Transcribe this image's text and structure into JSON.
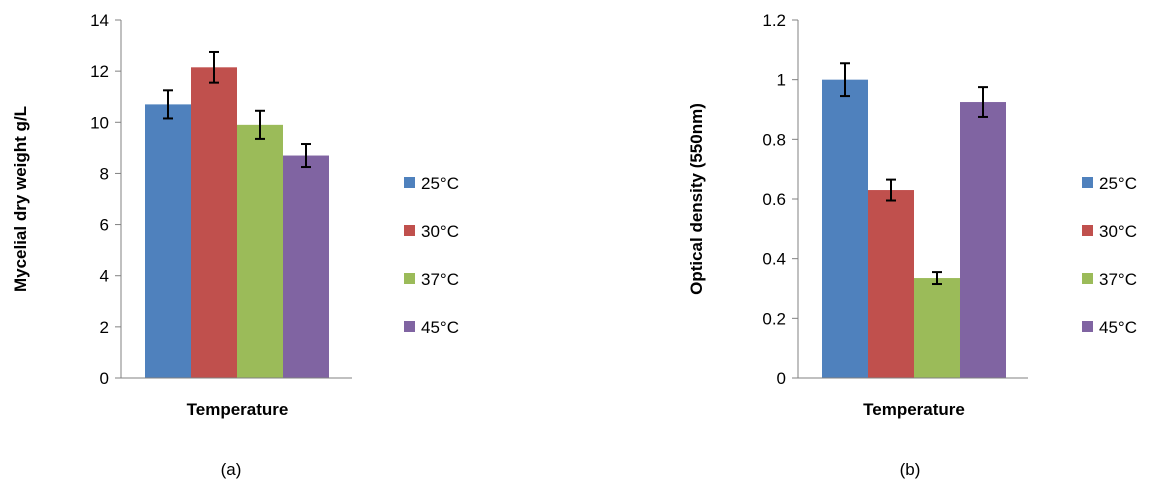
{
  "chart_data": [
    {
      "type": "bar",
      "caption": "(a)",
      "xlabel": "Temperature",
      "ylabel": "Mycelial dry weight g/L",
      "ylim": [
        0,
        14
      ],
      "yticks": [
        0,
        2,
        4,
        6,
        8,
        10,
        12,
        14
      ],
      "categories": [
        ""
      ],
      "series": [
        {
          "name": "25°C",
          "values": [
            10.7
          ],
          "error": [
            0.55
          ],
          "color": "#4f81bd"
        },
        {
          "name": "30°C",
          "values": [
            12.15
          ],
          "error": [
            0.6
          ],
          "color": "#c0504d"
        },
        {
          "name": "37°C",
          "values": [
            9.9
          ],
          "error": [
            0.55
          ],
          "color": "#9bbb59"
        },
        {
          "name": "45°C",
          "values": [
            8.7
          ],
          "error": [
            0.45
          ],
          "color": "#8064a2"
        }
      ],
      "grid": false,
      "legend_position": "right"
    },
    {
      "type": "bar",
      "caption": "(b)",
      "xlabel": "Temperature",
      "ylabel": "Optical density (550nm)",
      "ylim": [
        0,
        1.2
      ],
      "yticks": [
        0,
        0.2,
        0.4,
        0.6,
        0.8,
        1,
        1.2
      ],
      "categories": [
        ""
      ],
      "series": [
        {
          "name": "25°C",
          "values": [
            1.0
          ],
          "error": [
            0.055
          ],
          "color": "#4f81bd"
        },
        {
          "name": "30°C",
          "values": [
            0.63
          ],
          "error": [
            0.035
          ],
          "color": "#c0504d"
        },
        {
          "name": "37°C",
          "values": [
            0.335
          ],
          "error": [
            0.02
          ],
          "color": "#9bbb59"
        },
        {
          "name": "45°C",
          "values": [
            0.925
          ],
          "error": [
            0.05
          ],
          "color": "#8064a2"
        }
      ],
      "grid": false,
      "legend_position": "right"
    }
  ]
}
